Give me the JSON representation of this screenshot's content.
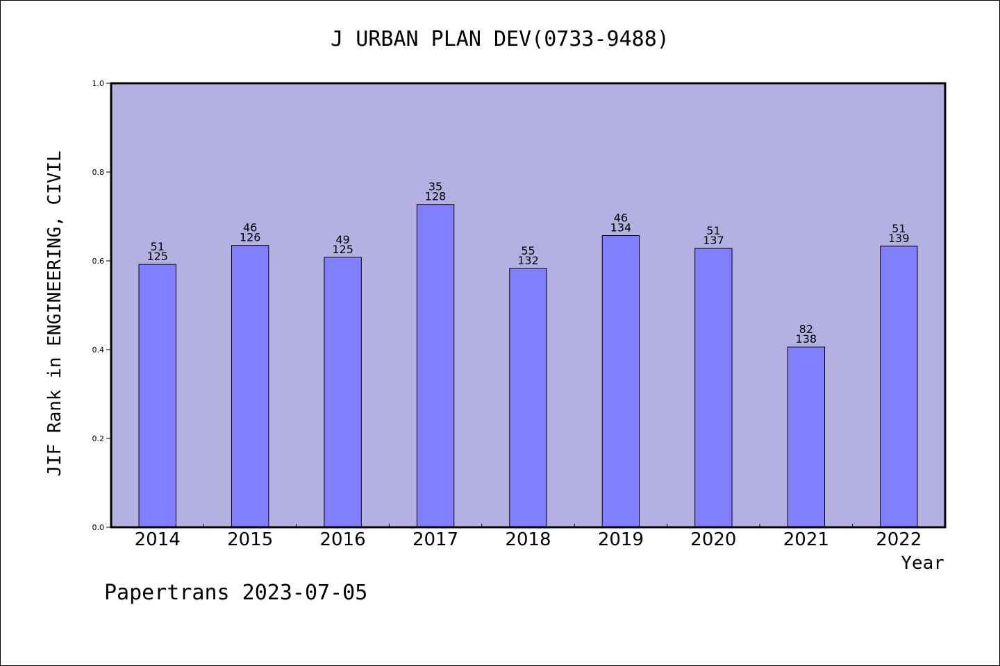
{
  "chart_data": {
    "type": "bar",
    "title": "J URBAN PLAN DEV(0733-9488)",
    "xlabel": "Year",
    "ylabel": "JIF Rank in ENGINEERING, CIVIL",
    "footer": "Papertrans 2023-07-05",
    "categories": [
      "2014",
      "2015",
      "2016",
      "2017",
      "2018",
      "2019",
      "2020",
      "2021",
      "2022"
    ],
    "values": [
      0.592,
      0.635,
      0.608,
      0.727,
      0.583,
      0.657,
      0.628,
      0.406,
      0.633
    ],
    "rank": [
      "51",
      "46",
      "49",
      "35",
      "55",
      "46",
      "51",
      "82",
      "51"
    ],
    "total": [
      "125",
      "126",
      "125",
      "128",
      "132",
      "134",
      "137",
      "138",
      "139"
    ],
    "ylim": [
      0,
      1.0
    ],
    "yticks": [
      "0.0",
      "0.2",
      "0.4",
      "0.6",
      "0.8",
      "1.0"
    ],
    "grid": false,
    "colors": {
      "plot_background": "#b5b0e2",
      "bar": "#8080ff",
      "axis": "#000000"
    }
  }
}
